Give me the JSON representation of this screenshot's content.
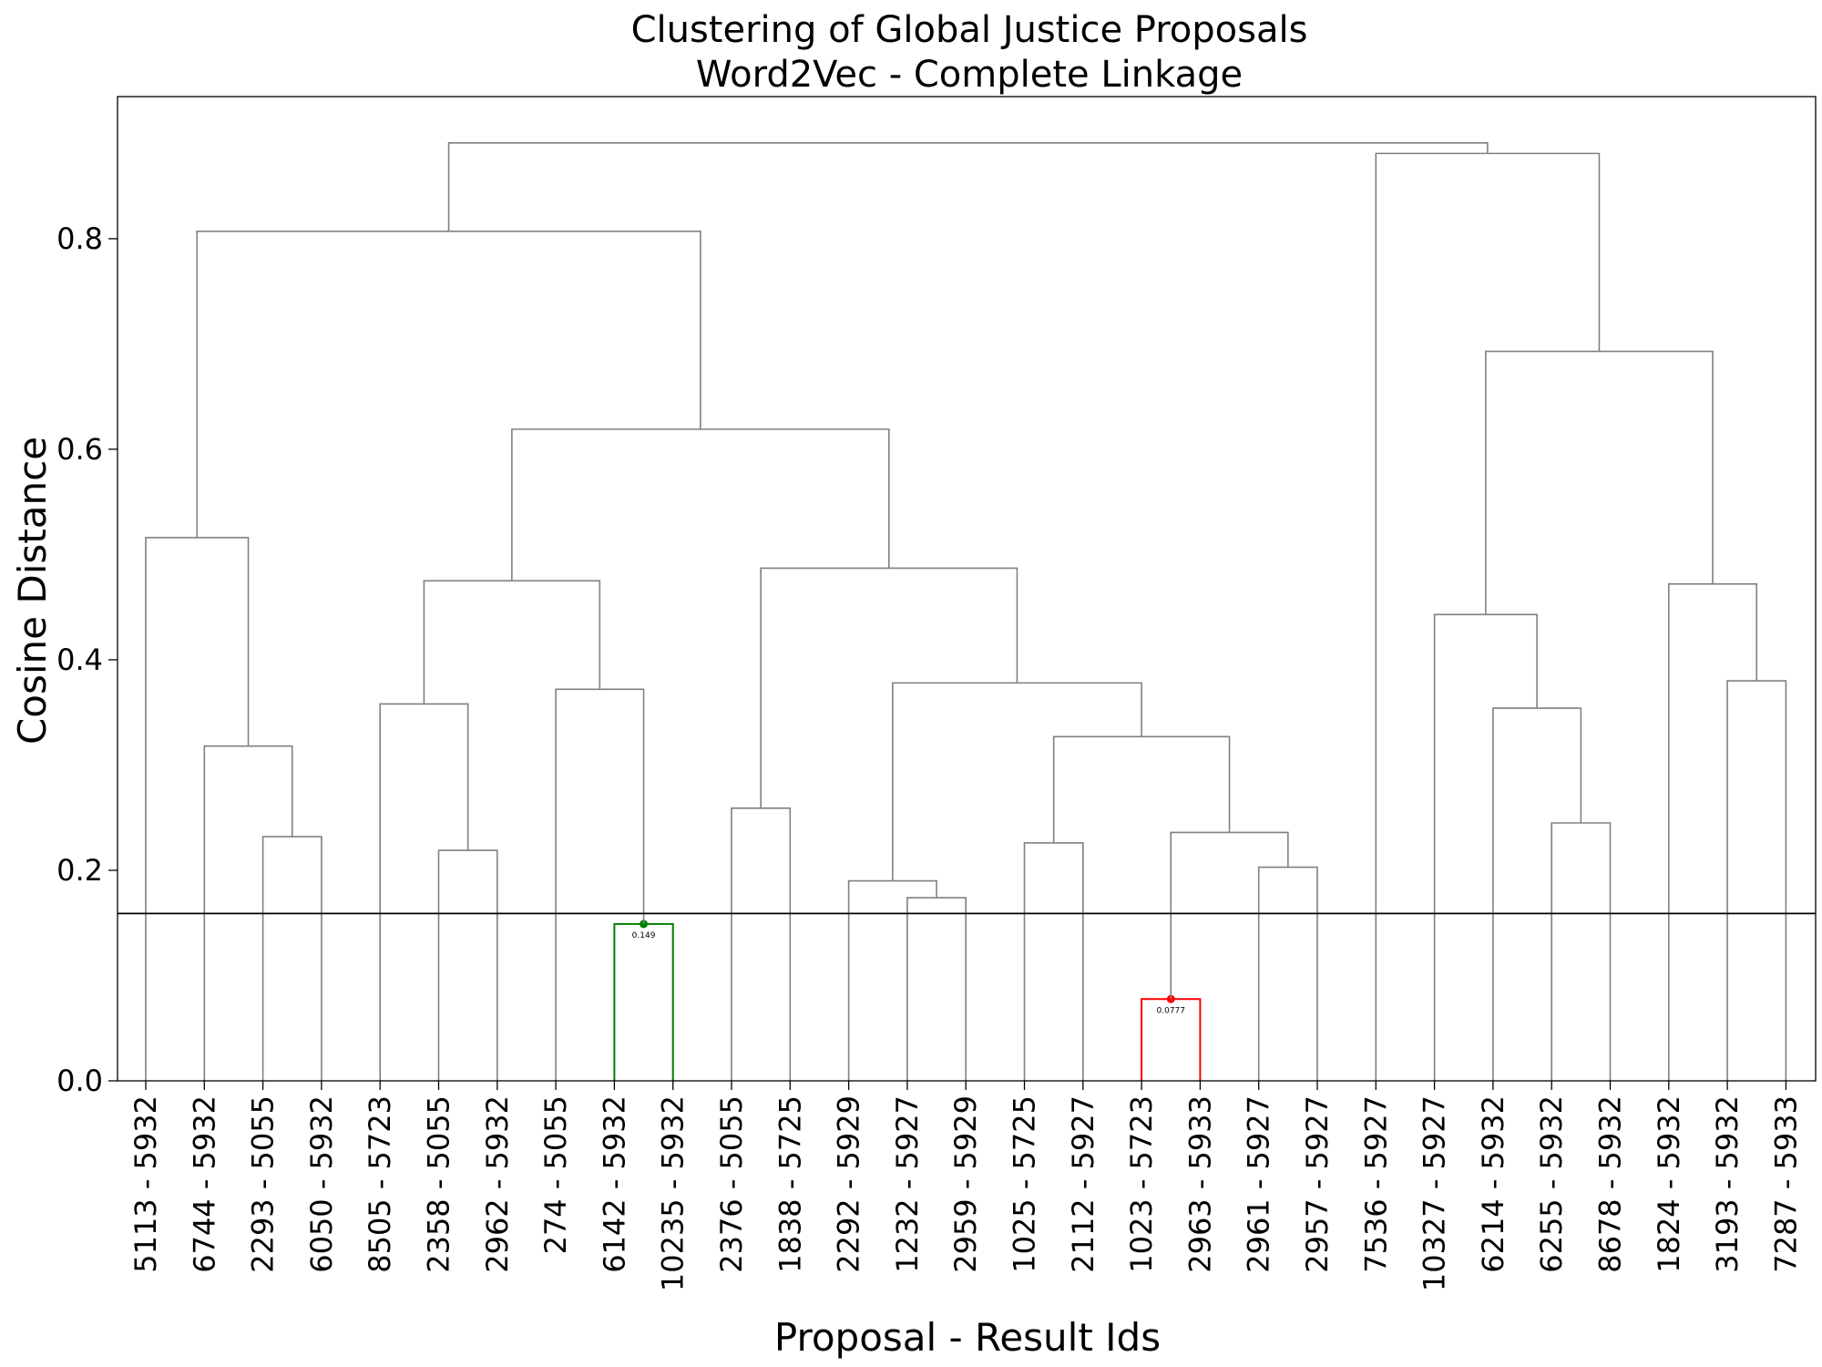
{
  "chart_data": {
    "type": "dendrogram",
    "title": "Clustering of Global Justice Proposals",
    "subtitle": "Word2Vec - Complete Linkage",
    "xlabel": "Proposal - Result Ids",
    "ylabel": "Cosine Distance",
    "ylim": [
      0,
      0.935
    ],
    "yticks": [
      "0.0",
      "0.2",
      "0.4",
      "0.6",
      "0.8"
    ],
    "ytick_values": [
      0.0,
      0.2,
      0.4,
      0.6,
      0.8
    ],
    "grid": false,
    "threshold": 0.159,
    "leaves": [
      "5113 - 5932",
      "6744 - 5932",
      "2293 - 5055",
      "6050 - 5932",
      "8505 - 5723",
      "2358 - 5055",
      "2962 - 5932",
      "274 - 5055",
      "6142 - 5932",
      "10235 - 5932",
      "2376 - 5055",
      "1838 - 5725",
      "2292 - 5929",
      "1232 - 5927",
      "2959 - 5929",
      "1025 - 5725",
      "2112 - 5927",
      "1023 - 5723",
      "2963 - 5933",
      "2961 - 5927",
      "2957 - 5927",
      "7536 - 5927",
      "10327 - 5927",
      "6214 - 5932",
      "6255 - 5932",
      "8678 - 5932",
      "1824 - 5932",
      "3193 - 5932",
      "7287 - 5933"
    ],
    "merges": [
      [
        2,
        3,
        0.232
      ],
      [
        1,
        "c0",
        0.318
      ],
      [
        0,
        "c1",
        0.516
      ],
      [
        5,
        6,
        0.219
      ],
      [
        4,
        "c3",
        0.358
      ],
      [
        8,
        9,
        0.149
      ],
      [
        7,
        "c5",
        0.372
      ],
      [
        "c4",
        "c6",
        0.475
      ],
      [
        10,
        11,
        0.259
      ],
      [
        13,
        14,
        0.174
      ],
      [
        12,
        "c9",
        0.19
      ],
      [
        15,
        16,
        0.226
      ],
      [
        17,
        18,
        0.0777
      ],
      [
        19,
        20,
        0.203
      ],
      [
        "c12",
        "c13",
        0.236
      ],
      [
        "c11",
        "c14",
        0.327
      ],
      [
        "c10",
        "c15",
        0.378
      ],
      [
        "c8",
        "c16",
        0.487
      ],
      [
        "c7",
        "c17",
        0.619
      ],
      [
        "c2",
        "c18",
        0.807
      ],
      [
        24,
        25,
        0.245
      ],
      [
        23,
        "c20",
        0.354
      ],
      [
        22,
        "c21",
        0.443
      ],
      [
        27,
        28,
        0.38
      ],
      [
        26,
        "c23",
        0.472
      ],
      [
        "c22",
        "c24",
        0.693
      ],
      [
        21,
        "c25",
        0.881
      ],
      [
        "c19",
        "c26",
        0.891
      ]
    ],
    "colors": {
      "default": "#808080",
      "highlight_green": "#008000",
      "highlight_red": "#ff0000",
      "threshold_line": "#000000"
    },
    "highlights": [
      {
        "merge": 5,
        "color": "#008000",
        "label": "0.149"
      },
      {
        "merge": 12,
        "color": "#ff0000",
        "label": "0.0777"
      }
    ]
  }
}
